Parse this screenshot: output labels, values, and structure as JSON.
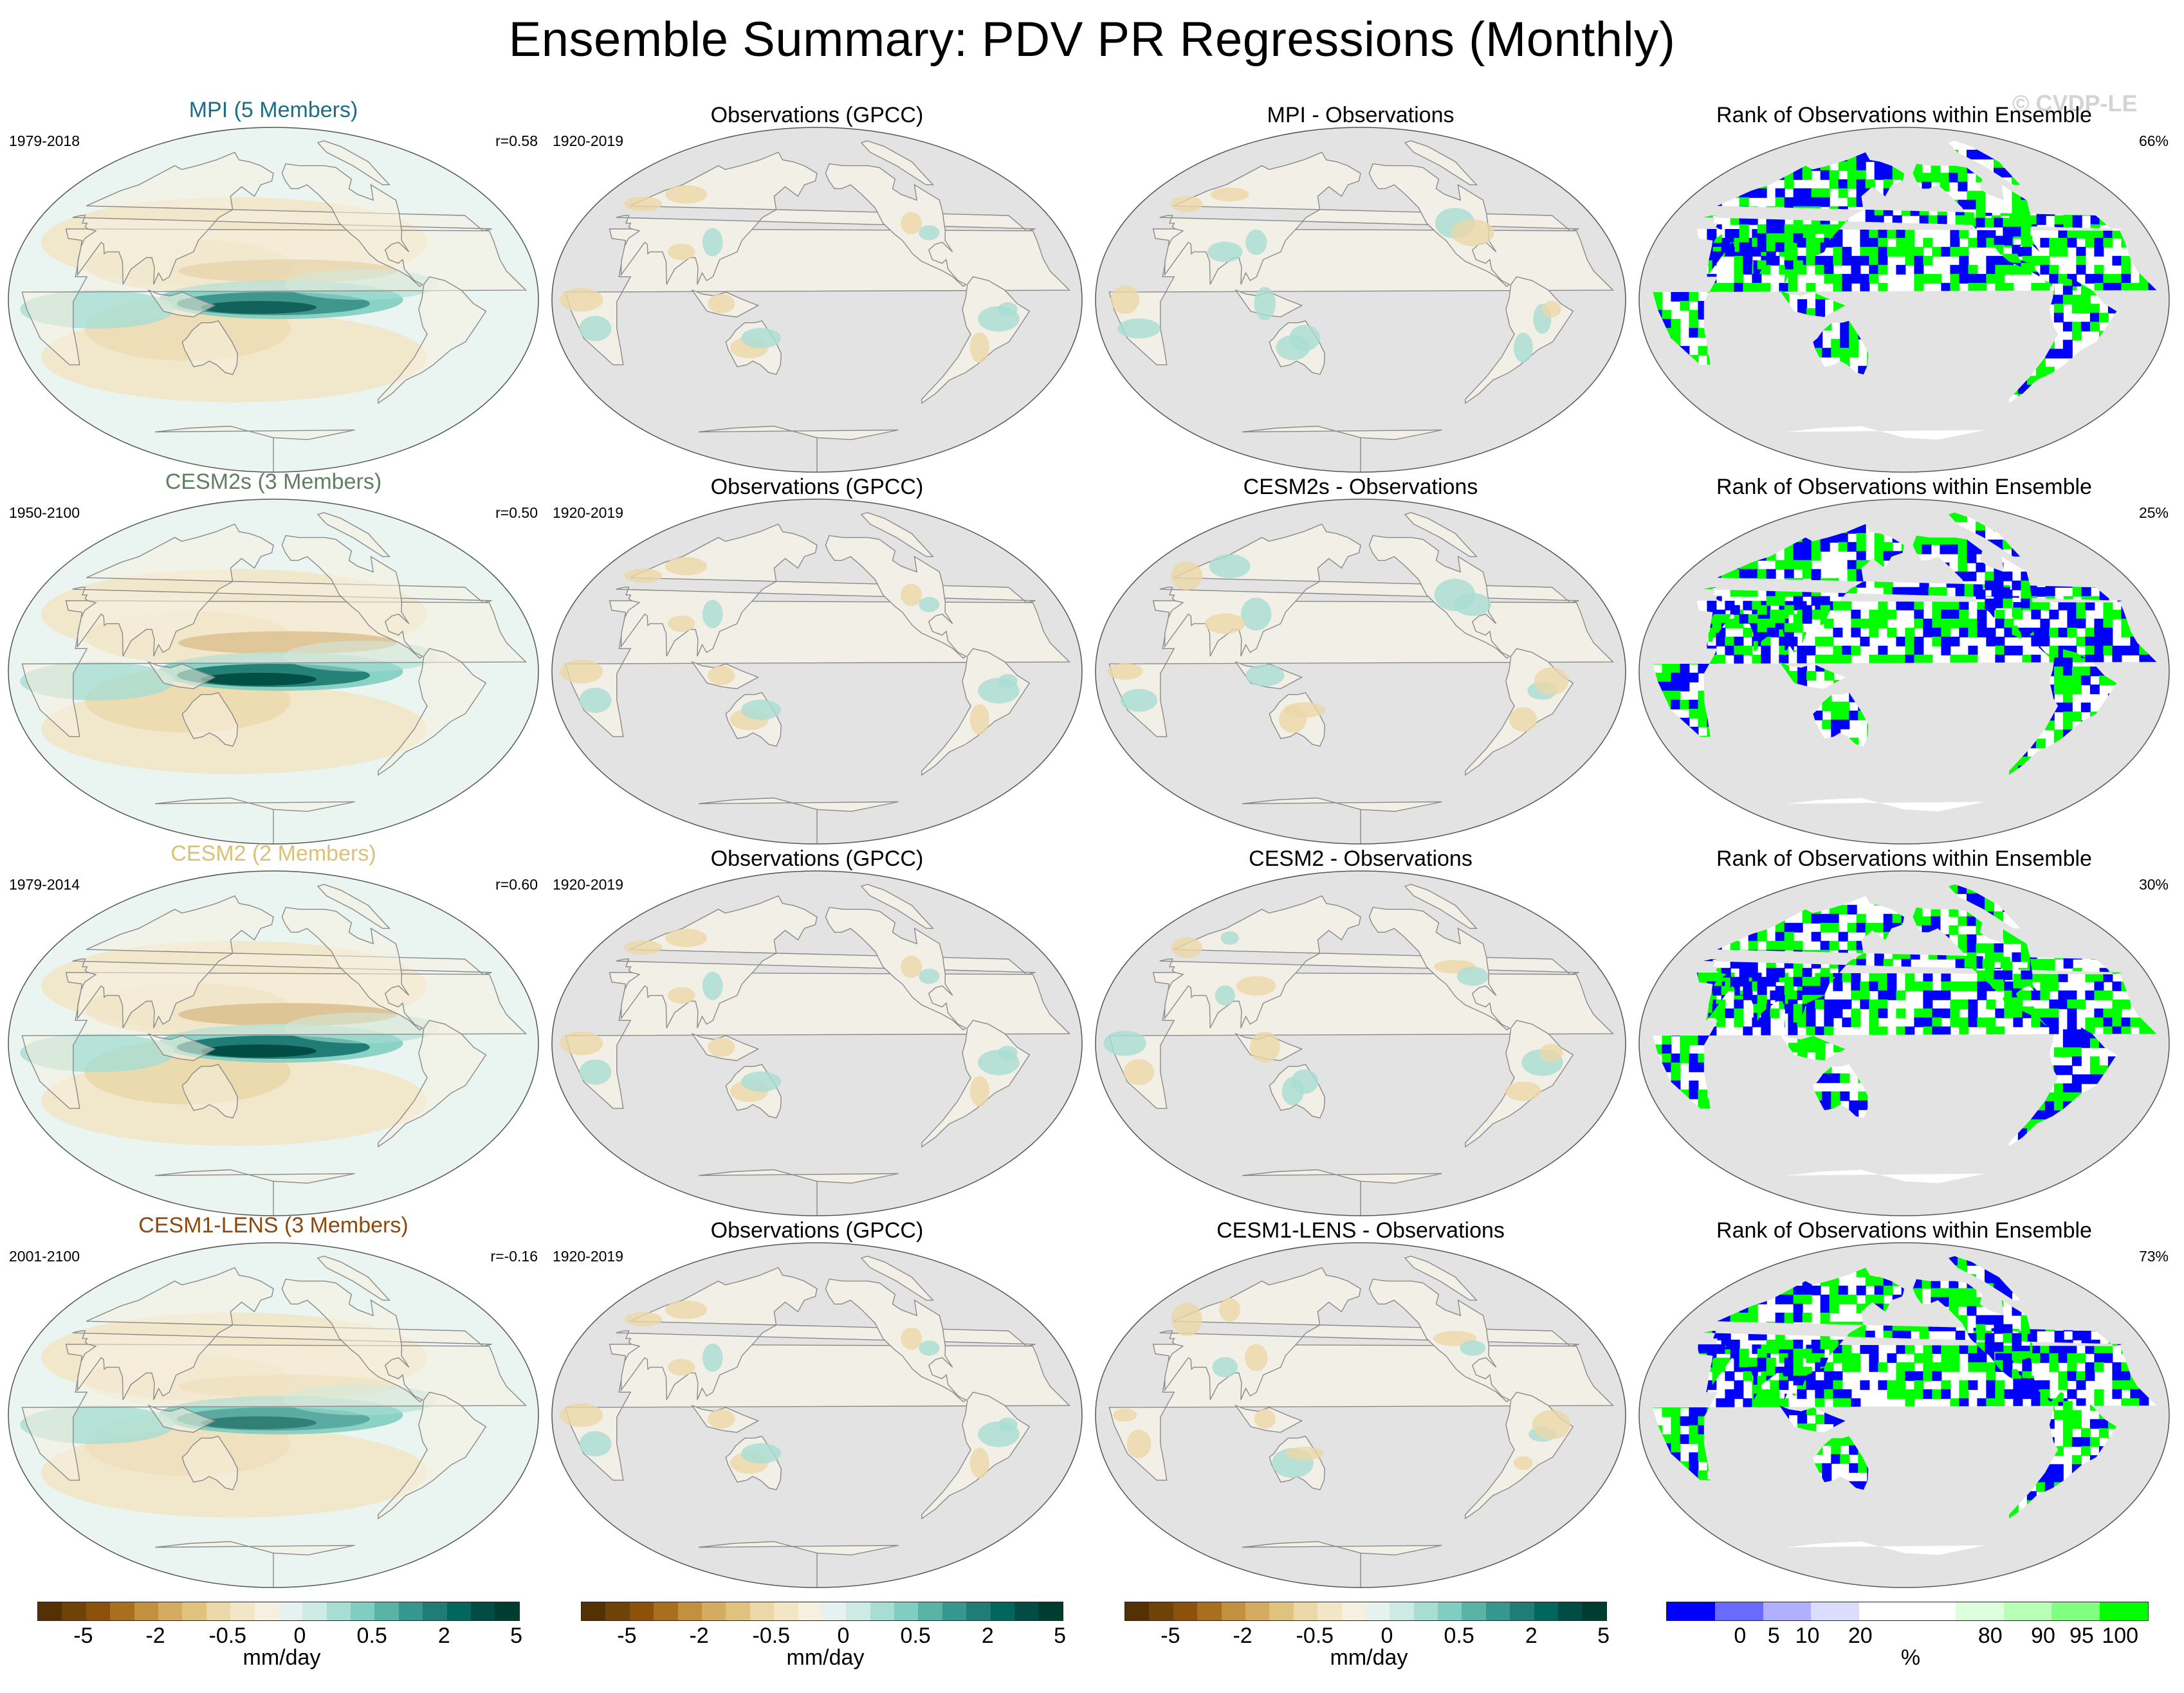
{
  "title": "Ensemble Summary: PDV PR Regressions (Monthly)",
  "watermark": "© CVDP-LE",
  "colors": {
    "mpi": "#1a6f86",
    "cesm2s": "#5f7f60",
    "cesm2": "#d8c27a",
    "cesm1": "#8a4a10",
    "ocean_gray": "#e3e3e3",
    "land_gray": "#efefef",
    "rank_blue": "#0000ff",
    "rank_green": "#00ff00"
  },
  "rows": [
    {
      "model": {
        "title": "MPI (5 Members)",
        "period": "1979-2018",
        "corr": "r=0.58",
        "color_key": "mpi",
        "strength": 0.7
      },
      "obs": {
        "title": "Observations (GPCC)",
        "period": "1920-2019"
      },
      "diff": {
        "title": "MPI - Observations"
      },
      "rank": {
        "title": "Rank of Observations within Ensemble",
        "pct": "66%",
        "seed": 11
      }
    },
    {
      "model": {
        "title": "CESM2s (3 Members)",
        "period": "1950-2100",
        "corr": "r=0.50",
        "color_key": "cesm2s",
        "strength": 0.95
      },
      "obs": {
        "title": "Observations (GPCC)",
        "period": "1920-2019"
      },
      "diff": {
        "title": "CESM2s - Observations"
      },
      "rank": {
        "title": "Rank of Observations within Ensemble",
        "pct": "25%",
        "seed": 23
      }
    },
    {
      "model": {
        "title": "CESM2 (2 Members)",
        "period": "1979-2014",
        "corr": "r=0.60",
        "color_key": "cesm2",
        "strength": 1.0
      },
      "obs": {
        "title": "Observations (GPCC)",
        "period": "1920-2019"
      },
      "diff": {
        "title": "CESM2 - Observations"
      },
      "rank": {
        "title": "Rank of Observations within Ensemble",
        "pct": "30%",
        "seed": 37
      }
    },
    {
      "model": {
        "title": "CESM1-LENS (3 Members)",
        "period": "2001-2100",
        "corr": "r=-0.16",
        "color_key": "cesm1",
        "strength": 0.45
      },
      "obs": {
        "title": "Observations (GPCC)",
        "period": "1920-2019"
      },
      "diff": {
        "title": "CESM1-LENS - Observations"
      },
      "rank": {
        "title": "Rank of Observations within Ensemble",
        "pct": "73%",
        "seed": 53
      }
    }
  ],
  "colorbars": [
    {
      "unit": "mm/day",
      "ticks": [
        "-5",
        "-2",
        "-0.5",
        "0",
        "0.5",
        "2",
        "5"
      ],
      "colors": [
        "#543005",
        "#6f4208",
        "#8c510a",
        "#a8701e",
        "#c2913f",
        "#d3ac62",
        "#dfc27d",
        "#ebd7a8",
        "#f2e6c6",
        "#f6f0e0",
        "#e6f2ef",
        "#cdeae5",
        "#a7ddd3",
        "#80cdc1",
        "#5ab4a6",
        "#35978f",
        "#1f7d75",
        "#01665e",
        "#014c45",
        "#003c30"
      ]
    },
    {
      "unit": "mm/day",
      "ticks": [
        "-5",
        "-2",
        "-0.5",
        "0",
        "0.5",
        "2",
        "5"
      ],
      "colors": [
        "#543005",
        "#6f4208",
        "#8c510a",
        "#a8701e",
        "#c2913f",
        "#d3ac62",
        "#dfc27d",
        "#ebd7a8",
        "#f2e6c6",
        "#f6f0e0",
        "#e6f2ef",
        "#cdeae5",
        "#a7ddd3",
        "#80cdc1",
        "#5ab4a6",
        "#35978f",
        "#1f7d75",
        "#01665e",
        "#014c45",
        "#003c30"
      ]
    },
    {
      "unit": "mm/day",
      "ticks": [
        "-5",
        "-2",
        "-0.5",
        "0",
        "0.5",
        "2",
        "5"
      ],
      "colors": [
        "#543005",
        "#6f4208",
        "#8c510a",
        "#a8701e",
        "#c2913f",
        "#d3ac62",
        "#dfc27d",
        "#ebd7a8",
        "#f2e6c6",
        "#f6f0e0",
        "#e6f2ef",
        "#cdeae5",
        "#a7ddd3",
        "#80cdc1",
        "#5ab4a6",
        "#35978f",
        "#1f7d75",
        "#01665e",
        "#014c45",
        "#003c30"
      ]
    },
    {
      "unit": "%",
      "ticks": [
        "0",
        "5",
        "10",
        "20",
        "80",
        "90",
        "95",
        "100"
      ],
      "colors": [
        "#0000ff",
        "#6a6aff",
        "#b0b0ff",
        "#dcdcff",
        "#ffffff",
        "#ffffff",
        "#ddffdd",
        "#b8ffb8",
        "#80ff80",
        "#00ff00"
      ]
    }
  ]
}
